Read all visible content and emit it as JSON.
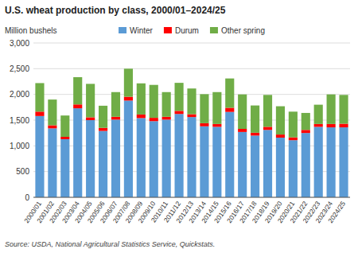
{
  "chart_data": {
    "type": "bar",
    "stacked": true,
    "title": "U.S. wheat production by class, 2000/01–2024/25",
    "y_label": "Million bushels",
    "source": "Source:  USDA, National Agricultural Statistics Service, Quickstats.",
    "categories": [
      "2000/01",
      "2001/02",
      "2002/03",
      "2003/04",
      "2004/05",
      "2005/06",
      "2006/07",
      "2007/08",
      "2008/09",
      "2009/10",
      "2010/11",
      "2011/12",
      "2012/13",
      "2013/14",
      "2014/15",
      "2015/16",
      "2016/17",
      "2017/18",
      "2018/19",
      "2019/20",
      "2020/21",
      "2021/22",
      "2022/23",
      "2023/24",
      "2024/25"
    ],
    "series": [
      {
        "name": "Winter",
        "color": "#5b9bd5",
        "values": [
          1580,
          1340,
          1130,
          1730,
          1500,
          1290,
          1510,
          1880,
          1540,
          1480,
          1510,
          1620,
          1560,
          1380,
          1370,
          1660,
          1270,
          1200,
          1310,
          1160,
          1110,
          1250,
          1370,
          1360,
          1360
        ]
      },
      {
        "name": "Durum",
        "color": "#ff0000",
        "values": [
          85,
          60,
          45,
          75,
          55,
          60,
          55,
          75,
          70,
          65,
          55,
          60,
          55,
          60,
          55,
          80,
          60,
          55,
          60,
          60,
          55,
          60,
          55,
          65,
          70
        ]
      },
      {
        "name": "Other spring",
        "color": "#70ad47",
        "values": [
          555,
          500,
          415,
          530,
          650,
          430,
          480,
          545,
          605,
          640,
          480,
          545,
          500,
          565,
          620,
          570,
          670,
          530,
          620,
          550,
          500,
          330,
          375,
          575,
          560
        ]
      }
    ],
    "ylim": [
      0,
      3000
    ],
    "yticks": [
      0,
      500,
      {
        "value": 1000,
        "label": "1,000"
      },
      {
        "value": 1500,
        "label": "1,500"
      },
      {
        "value": 2000,
        "label": "2,000"
      },
      {
        "value": 2500,
        "label": "2,500"
      },
      {
        "value": 3000,
        "label": "3,000"
      }
    ],
    "grid": true,
    "legend": "top"
  }
}
